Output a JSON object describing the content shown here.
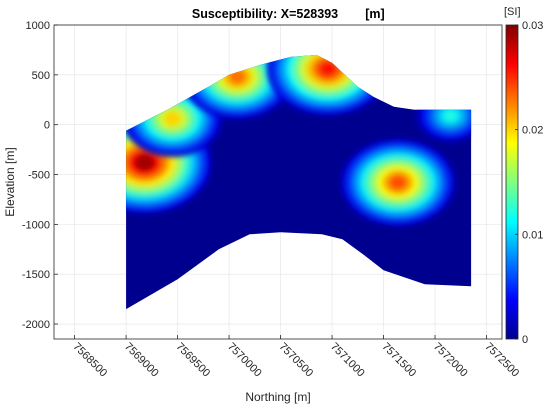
{
  "chart_data": {
    "type": "heatmap",
    "subtype": "filled-contour cross-section",
    "title": "Susceptibility: X=528393",
    "title_unit": "[m]",
    "xlabel": "Northing [m]",
    "ylabel": "Elevation [m]",
    "xlim": [
      7568300,
      7572650
    ],
    "ylim": [
      -2150,
      1000
    ],
    "x_ticks": [
      7568500,
      7569000,
      7569500,
      7570000,
      7570500,
      7571000,
      7571500,
      7572000,
      7572500
    ],
    "y_ticks": [
      1000,
      500,
      0,
      -500,
      -1000,
      -1500,
      -2000
    ],
    "grid": true,
    "colorbar": {
      "label": "[SI]",
      "range": [
        0,
        0.03
      ],
      "ticks": [
        0,
        0.01,
        0.02,
        0.03
      ],
      "tick_labels": [
        "0",
        "0.01",
        "0.02",
        "0.03"
      ],
      "colormap": "jet",
      "colors": [
        "#00008f",
        "#0000ff",
        "#0080ff",
        "#00ffff",
        "#80ff80",
        "#ffff00",
        "#ff8000",
        "#ff0000",
        "#800000"
      ]
    },
    "section": {
      "top_surface": [
        [
          7569000,
          -60
        ],
        [
          7569400,
          150
        ],
        [
          7569800,
          380
        ],
        [
          7570000,
          500
        ],
        [
          7570300,
          600
        ],
        [
          7570600,
          680
        ],
        [
          7570850,
          700
        ],
        [
          7571000,
          620
        ],
        [
          7571250,
          380
        ],
        [
          7571400,
          280
        ],
        [
          7571600,
          180
        ],
        [
          7571800,
          150
        ],
        [
          7572350,
          150
        ]
      ],
      "bottom_surface": [
        [
          7572350,
          -1620
        ],
        [
          7571900,
          -1600
        ],
        [
          7571500,
          -1460
        ],
        [
          7571300,
          -1300
        ],
        [
          7571100,
          -1150
        ],
        [
          7570900,
          -1100
        ],
        [
          7570500,
          -1080
        ],
        [
          7570200,
          -1100
        ],
        [
          7569900,
          -1250
        ],
        [
          7569500,
          -1550
        ],
        [
          7569000,
          -1850
        ]
      ],
      "anomalies": [
        {
          "x": 7569180,
          "y": -380,
          "value": 0.029
        },
        {
          "x": 7569450,
          "y": 60,
          "value": 0.02
        },
        {
          "x": 7570080,
          "y": 480,
          "value": 0.023
        },
        {
          "x": 7570960,
          "y": 560,
          "value": 0.026
        },
        {
          "x": 7571640,
          "y": -580,
          "value": 0.024
        },
        {
          "x": 7572150,
          "y": 90,
          "value": 0.012
        }
      ]
    }
  }
}
